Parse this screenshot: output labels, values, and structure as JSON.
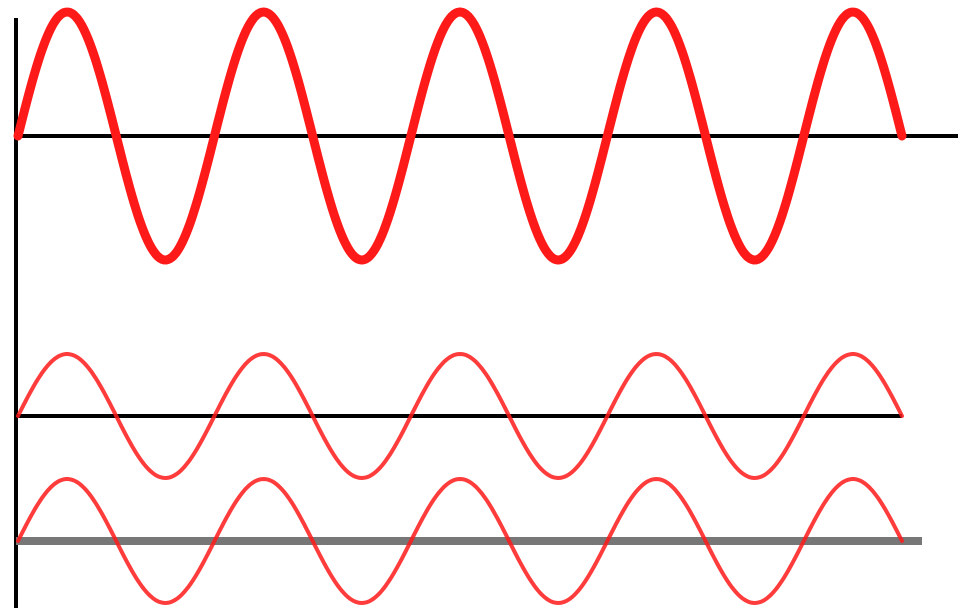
{
  "diagram": {
    "type": "wave-superposition",
    "colors": {
      "wave": "#ff1a1a",
      "axis": "#000000",
      "baseline": "#777777",
      "background": "#ffffff"
    },
    "waves": [
      {
        "id": "resultant",
        "relative_amplitude": 2,
        "cycles": 4.5,
        "phase": "sine"
      },
      {
        "id": "component-1",
        "relative_amplitude": 1,
        "cycles": 4.5,
        "phase": "sine"
      },
      {
        "id": "component-2",
        "relative_amplitude": 1,
        "cycles": 4.5,
        "phase": "sine"
      }
    ]
  }
}
